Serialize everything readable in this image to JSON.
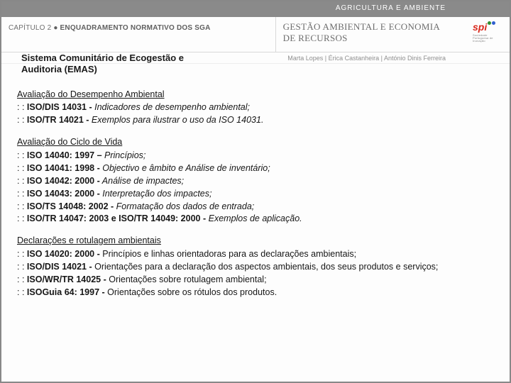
{
  "colors": {
    "page_border": "#888888",
    "topbar_bg": "#8a8a8a",
    "topbar_text": "#ffffff",
    "header_text": "#6f6f6f",
    "title_text": "#6d6d6d",
    "body_text": "#161616",
    "author_text": "#8f8f8f",
    "divider": "#d8d8d8",
    "logo_red": "#d9291c",
    "logo_green": "#2f8f2f",
    "logo_blue": "#2f5fcf"
  },
  "top_bar": "AGRICULTURA E AMBIENTE",
  "chapter": {
    "prefix": "CAPÍTULO 2 ",
    "bullet": "●",
    "suffix": " ENQUADRAMENTO NORMATIVO DOS SGA"
  },
  "main_title": {
    "line1": "GESTÃO AMBIENTAL E ECONOMIA",
    "line2": "DE RECURSOS"
  },
  "logo": {
    "text": "spi",
    "subline": "Sociedade Portuguesa de Inovação"
  },
  "authors": "Marta Lopes | Érica Castanheira | António Dinis Ferreira",
  "subtitle": {
    "line1": "Sistema Comunitário de Ecogestão e",
    "line2": "Auditoria (EMAS)"
  },
  "sections": [
    {
      "title": "Avaliação do Desempenho Ambiental",
      "items": [
        {
          "prefix": ": : ",
          "code": "ISO/DIS 14031 -",
          "desc": " Indicadores de desempenho ambiental;",
          "italic": true
        },
        {
          "prefix": ": : ",
          "code": "ISO/TR 14021 -",
          "desc": " Exemplos para ilustrar o uso da ISO 14031.",
          "italic": true
        }
      ]
    },
    {
      "title": "Avaliação do Ciclo de Vida",
      "items": [
        {
          "prefix": ": : ",
          "code": "ISO 14040: 1997 –",
          "desc": " Princípios;",
          "italic": true
        },
        {
          "prefix": ": : ",
          "code": "ISO 14041: 1998 -",
          "desc": " Objectivo e âmbito e Análise de inventário;",
          "italic": true
        },
        {
          "prefix": ": : ",
          "code": "ISO 14042: 2000 -",
          "desc": " Análise de impactes;",
          "italic": true
        },
        {
          "prefix": ": : ",
          "code": "ISO 14043: 2000 -",
          "desc": " Interpretação dos impactes;",
          "italic": true
        },
        {
          "prefix": ": : ",
          "code": "ISO/TS 14048: 2002 -",
          "desc": " Formatação dos dados de entrada;",
          "italic": true
        },
        {
          "prefix": ": : ",
          "code": "ISO/TR 14047: 2003 e ISO/TR 14049: 2000 -",
          "desc": " Exemplos de aplicação.",
          "italic": true
        }
      ]
    },
    {
      "title": "Declarações e rotulagem ambientais",
      "items": [
        {
          "prefix": ": : ",
          "code": "ISO 14020: 2000 -",
          "desc": " Princípios e linhas orientadoras para as declarações ambientais;",
          "italic": false
        },
        {
          "prefix": ": : ",
          "code": "ISO/DIS 14021 -",
          "desc": " Orientações para a declaração dos aspectos ambientais, dos seus produtos e serviços;",
          "italic": false
        },
        {
          "prefix": ": : ",
          "code": "ISO/WR/TR 14025 -",
          "desc": " Orientações sobre rotulagem ambiental;",
          "italic": false
        },
        {
          "prefix": ": : ",
          "code": "ISOGuia 64: 1997 -",
          "desc": " Orientações sobre os rótulos dos produtos.",
          "italic": false
        }
      ]
    }
  ]
}
